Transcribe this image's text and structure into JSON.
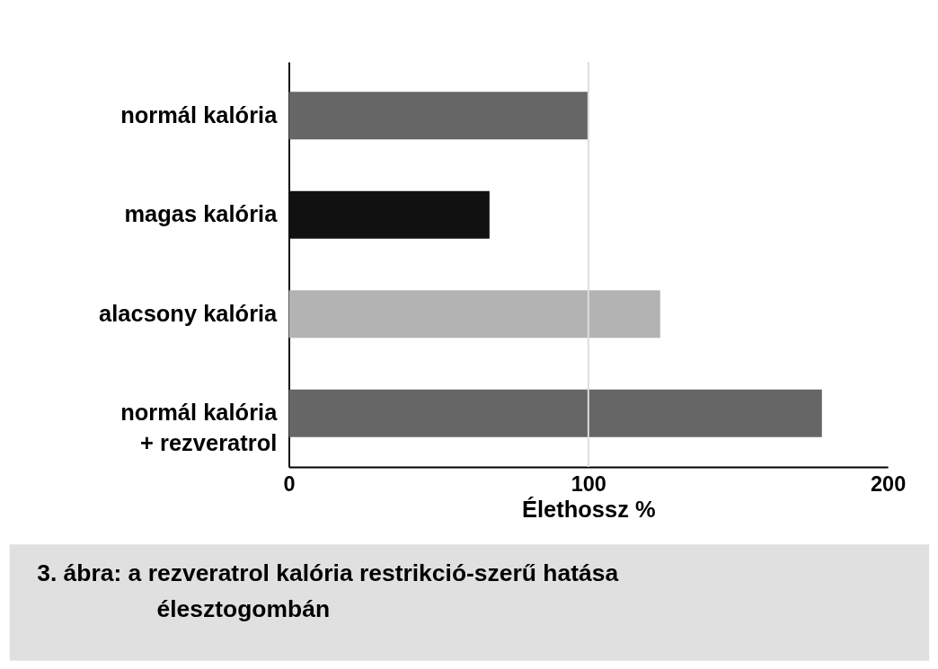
{
  "chart_data": {
    "type": "bar",
    "orientation": "horizontal",
    "categories": [
      "normál kalória",
      "magas kalória",
      "alacsony kalória",
      "normál kalória\n+ rezveratrol"
    ],
    "values": [
      100,
      67,
      124,
      178
    ],
    "colors": [
      "#666666",
      "#111111",
      "#b3b3b3",
      "#666666"
    ],
    "xlim": [
      0,
      200
    ],
    "xticks": [
      0,
      100,
      200
    ],
    "xlabel": "Élethossz %",
    "ref_lines": [
      {
        "axis": "x",
        "value": 100,
        "color": "#dddddd"
      }
    ],
    "annotations": [
      "3. ábra: a rezveratrol kalória restrikció-szerű hatása élesztogombán"
    ]
  }
}
